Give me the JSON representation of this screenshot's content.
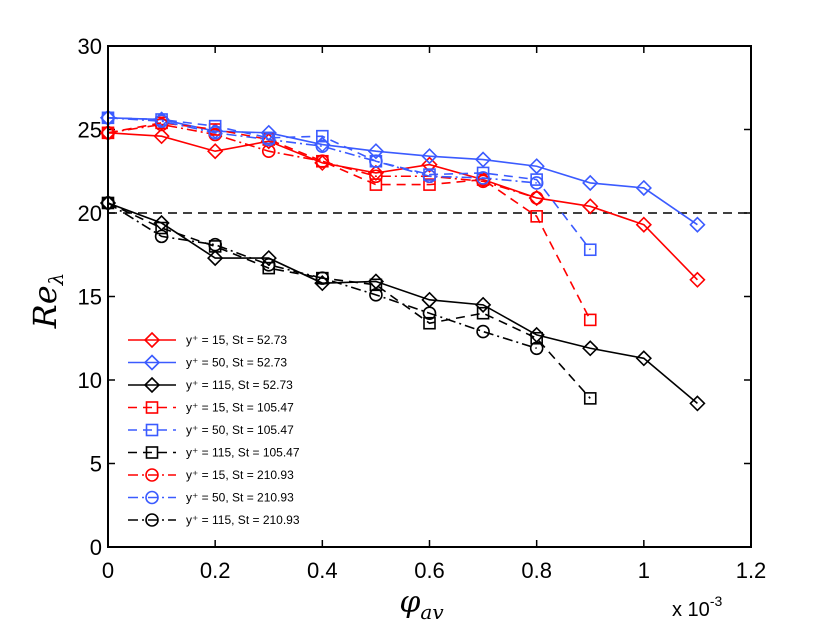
{
  "chart_data": {
    "type": "line",
    "title": "",
    "xlabel": {
      "base": "φ",
      "sub": "av"
    },
    "ylabel": {
      "base": "Re",
      "sub": "λ"
    },
    "x_multiplier": {
      "text": "x 10",
      "exp": "-3"
    },
    "xlim": [
      0,
      1.2
    ],
    "ylim": [
      0,
      30
    ],
    "xticks": [
      0,
      0.2,
      0.4,
      0.6,
      0.8,
      1,
      1.2
    ],
    "xtick_labels": [
      "0",
      "0.2",
      "0.4",
      "0.6",
      "0.8",
      "1",
      "1.2"
    ],
    "yticks": [
      0,
      5,
      10,
      15,
      20,
      25,
      30
    ],
    "ytick_labels": [
      "0",
      "5",
      "10",
      "15",
      "20",
      "25",
      "30"
    ],
    "legend_position": "lower-left",
    "reference_line": {
      "y": 20,
      "style": "dashed",
      "color": "#000000"
    },
    "series": [
      {
        "name": "y⁺ = 15, St = 52.73",
        "color": "#ff0000",
        "dash": "solid",
        "marker": "diamond",
        "x": [
          0,
          0.1,
          0.2,
          0.3,
          0.4,
          0.5,
          0.6,
          0.7,
          0.8,
          0.9,
          1.0,
          1.1
        ],
        "y": [
          24.8,
          24.6,
          23.7,
          24.3,
          23.0,
          22.4,
          22.9,
          22.0,
          20.9,
          20.4,
          19.3,
          16.0
        ]
      },
      {
        "name": "y⁺ = 50, St = 52.73",
        "color": "#3b5bff",
        "dash": "solid",
        "marker": "diamond",
        "x": [
          0,
          0.1,
          0.2,
          0.3,
          0.4,
          0.5,
          0.6,
          0.7,
          0.8,
          0.9,
          1.0,
          1.1
        ],
        "y": [
          25.7,
          25.6,
          24.9,
          24.8,
          24.1,
          23.7,
          23.4,
          23.2,
          22.8,
          21.8,
          21.5,
          19.3
        ]
      },
      {
        "name": "y⁺ = 115, St = 52.73",
        "color": "#000000",
        "dash": "solid",
        "marker": "diamond",
        "x": [
          0,
          0.1,
          0.2,
          0.3,
          0.4,
          0.5,
          0.6,
          0.7,
          0.8,
          0.9,
          1.0,
          1.1
        ],
        "y": [
          20.6,
          19.4,
          17.3,
          17.3,
          15.8,
          15.9,
          14.8,
          14.5,
          12.7,
          11.9,
          11.3,
          8.6
        ]
      },
      {
        "name": "y⁺ = 15, St = 105.47",
        "color": "#ff0000",
        "dash": "dashed",
        "marker": "square",
        "x": [
          0,
          0.1,
          0.2,
          0.3,
          0.4,
          0.5,
          0.6,
          0.7,
          0.8,
          0.9
        ],
        "y": [
          24.8,
          25.4,
          25.0,
          24.4,
          23.1,
          21.7,
          21.7,
          22.0,
          19.8,
          13.6
        ]
      },
      {
        "name": "y⁺ = 50, St = 105.47",
        "color": "#3b5bff",
        "dash": "dashed",
        "marker": "square",
        "x": [
          0,
          0.1,
          0.2,
          0.3,
          0.4,
          0.5,
          0.6,
          0.7,
          0.8,
          0.9
        ],
        "y": [
          25.7,
          25.6,
          25.2,
          24.5,
          24.6,
          23.1,
          22.3,
          22.4,
          22.0,
          17.8
        ]
      },
      {
        "name": "y⁺ = 115, St = 105.47",
        "color": "#000000",
        "dash": "dashed",
        "marker": "square",
        "x": [
          0,
          0.1,
          0.2,
          0.3,
          0.4,
          0.5,
          0.6,
          0.7,
          0.8,
          0.9
        ],
        "y": [
          20.6,
          19.1,
          18.0,
          16.7,
          16.1,
          15.7,
          13.4,
          14.0,
          12.5,
          8.9
        ]
      },
      {
        "name": "y⁺ = 15, St = 210.93",
        "color": "#ff0000",
        "dash": "dashdot",
        "marker": "circle",
        "x": [
          0,
          0.1,
          0.2,
          0.3,
          0.4,
          0.5,
          0.6,
          0.7,
          0.8
        ],
        "y": [
          24.8,
          25.3,
          24.7,
          23.7,
          23.1,
          22.2,
          22.2,
          21.9,
          20.9
        ]
      },
      {
        "name": "y⁺ = 50, St = 210.93",
        "color": "#3b5bff",
        "dash": "dashdot",
        "marker": "circle",
        "x": [
          0,
          0.1,
          0.2,
          0.3,
          0.4,
          0.5,
          0.6,
          0.7,
          0.8
        ],
        "y": [
          25.7,
          25.5,
          24.8,
          24.4,
          24.0,
          23.1,
          22.2,
          22.1,
          21.8
        ]
      },
      {
        "name": "y⁺ = 115, St = 210.93",
        "color": "#000000",
        "dash": "dashdot",
        "marker": "circle",
        "x": [
          0,
          0.1,
          0.2,
          0.3,
          0.4,
          0.5,
          0.6,
          0.7,
          0.8
        ],
        "y": [
          20.6,
          18.6,
          18.1,
          16.9,
          16.1,
          15.1,
          14.0,
          12.9,
          11.9
        ]
      }
    ]
  }
}
